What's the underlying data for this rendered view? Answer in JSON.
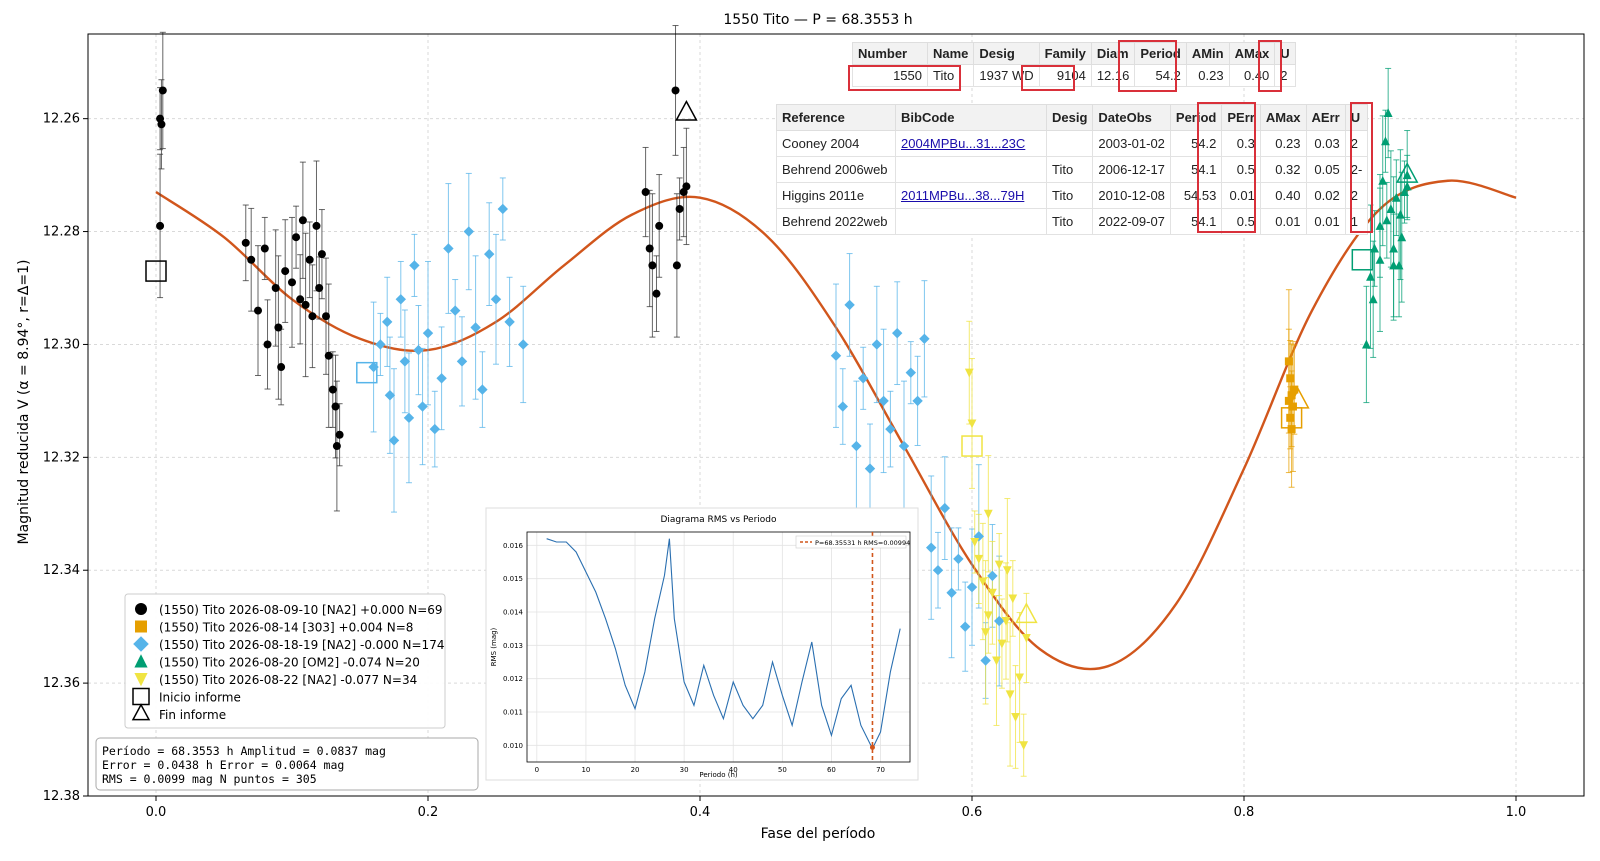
{
  "chart_data": [
    {
      "type": "scatter",
      "title": "1550 Tito — P = 68.3553 h",
      "xlabel": "Fase del período",
      "ylabel": "Magnitud reducida V  (α = 8.94°, r=Δ=1)",
      "xlim": [
        -0.05,
        1.05
      ],
      "ylim": [
        12.38,
        12.245
      ],
      "y_inverted": true,
      "xticks": [
        "0.0",
        "0.2",
        "0.4",
        "0.6",
        "0.8",
        "1.0"
      ],
      "yticks": [
        "12.26",
        "12.28",
        "12.30",
        "12.32",
        "12.34",
        "12.36",
        "12.38"
      ],
      "grid": true,
      "legend_position": "lower-left",
      "fit_curve": {
        "name": "Fourier fit",
        "color": "#d1561c",
        "x": [
          0.0,
          0.05,
          0.1,
          0.15,
          0.2,
          0.25,
          0.3,
          0.35,
          0.4,
          0.45,
          0.5,
          0.55,
          0.6,
          0.65,
          0.7,
          0.75,
          0.8,
          0.85,
          0.9,
          0.95,
          1.0
        ],
        "y": [
          12.273,
          12.281,
          12.292,
          12.299,
          12.301,
          12.296,
          12.286,
          12.277,
          12.274,
          12.281,
          12.297,
          12.318,
          12.339,
          12.354,
          12.357,
          12.346,
          12.322,
          12.294,
          12.276,
          12.271,
          12.274
        ]
      },
      "series": [
        {
          "name": "(1550) Tito 2026-08-09-10 [NA2] +0.000 N=69",
          "color": "#000000",
          "marker": "circle",
          "points": [
            [
              0.003,
              12.26
            ],
            [
              0.004,
              12.261
            ],
            [
              0.005,
              12.255
            ],
            [
              0.003,
              12.279
            ],
            [
              0.066,
              12.282
            ],
            [
              0.07,
              12.285
            ],
            [
              0.075,
              12.294
            ],
            [
              0.08,
              12.283
            ],
            [
              0.082,
              12.3
            ],
            [
              0.088,
              12.29
            ],
            [
              0.09,
              12.297
            ],
            [
              0.092,
              12.304
            ],
            [
              0.095,
              12.287
            ],
            [
              0.1,
              12.289
            ],
            [
              0.103,
              12.281
            ],
            [
              0.106,
              12.292
            ],
            [
              0.108,
              12.278
            ],
            [
              0.11,
              12.293
            ],
            [
              0.113,
              12.285
            ],
            [
              0.115,
              12.295
            ],
            [
              0.118,
              12.279
            ],
            [
              0.12,
              12.29
            ],
            [
              0.122,
              12.284
            ],
            [
              0.125,
              12.295
            ],
            [
              0.127,
              12.302
            ],
            [
              0.13,
              12.308
            ],
            [
              0.132,
              12.311
            ],
            [
              0.133,
              12.318
            ],
            [
              0.135,
              12.316
            ],
            [
              0.36,
              12.273
            ],
            [
              0.363,
              12.283
            ],
            [
              0.365,
              12.286
            ],
            [
              0.368,
              12.291
            ],
            [
              0.37,
              12.279
            ],
            [
              0.382,
              12.255
            ],
            [
              0.385,
              12.276
            ],
            [
              0.388,
              12.273
            ],
            [
              0.39,
              12.272
            ],
            [
              0.383,
              12.286
            ]
          ]
        },
        {
          "name": "(1550) Tito 2026-08-14 [303] +0.004 N=8",
          "color": "#e69f00",
          "marker": "square",
          "points": [
            [
              0.833,
              12.303
            ],
            [
              0.834,
              12.306
            ],
            [
              0.835,
              12.309
            ],
            [
              0.836,
              12.311
            ],
            [
              0.834,
              12.313
            ],
            [
              0.837,
              12.308
            ],
            [
              0.835,
              12.315
            ],
            [
              0.833,
              12.31
            ]
          ]
        },
        {
          "name": "(1550) Tito 2026-08-18-19 [NA2] -0.000 N=174",
          "color": "#56b4e9",
          "marker": "diamond",
          "points": [
            [
              0.16,
              12.304
            ],
            [
              0.165,
              12.3
            ],
            [
              0.17,
              12.296
            ],
            [
              0.172,
              12.309
            ],
            [
              0.175,
              12.317
            ],
            [
              0.18,
              12.292
            ],
            [
              0.183,
              12.303
            ],
            [
              0.186,
              12.313
            ],
            [
              0.19,
              12.286
            ],
            [
              0.193,
              12.301
            ],
            [
              0.196,
              12.311
            ],
            [
              0.2,
              12.298
            ],
            [
              0.205,
              12.315
            ],
            [
              0.21,
              12.306
            ],
            [
              0.215,
              12.283
            ],
            [
              0.22,
              12.294
            ],
            [
              0.225,
              12.303
            ],
            [
              0.23,
              12.28
            ],
            [
              0.235,
              12.297
            ],
            [
              0.24,
              12.308
            ],
            [
              0.245,
              12.284
            ],
            [
              0.25,
              12.292
            ],
            [
              0.255,
              12.276
            ],
            [
              0.26,
              12.296
            ],
            [
              0.27,
              12.3
            ],
            [
              0.5,
              12.302
            ],
            [
              0.505,
              12.311
            ],
            [
              0.51,
              12.293
            ],
            [
              0.515,
              12.318
            ],
            [
              0.52,
              12.306
            ],
            [
              0.525,
              12.322
            ],
            [
              0.53,
              12.3
            ],
            [
              0.535,
              12.31
            ],
            [
              0.54,
              12.315
            ],
            [
              0.545,
              12.298
            ],
            [
              0.55,
              12.318
            ],
            [
              0.555,
              12.305
            ],
            [
              0.56,
              12.31
            ],
            [
              0.565,
              12.299
            ],
            [
              0.57,
              12.336
            ],
            [
              0.575,
              12.34
            ],
            [
              0.58,
              12.329
            ],
            [
              0.585,
              12.344
            ],
            [
              0.59,
              12.338
            ],
            [
              0.595,
              12.35
            ],
            [
              0.6,
              12.343
            ],
            [
              0.605,
              12.334
            ],
            [
              0.61,
              12.356
            ],
            [
              0.615,
              12.341
            ],
            [
              0.62,
              12.349
            ]
          ]
        },
        {
          "name": "(1550) Tito 2026-08-20 [OM2] -0.074 N=20",
          "color": "#009e73",
          "marker": "triangle-up",
          "points": [
            [
              0.89,
              12.3
            ],
            [
              0.893,
              12.288
            ],
            [
              0.896,
              12.283
            ],
            [
              0.9,
              12.279
            ],
            [
              0.902,
              12.271
            ],
            [
              0.904,
              12.264
            ],
            [
              0.906,
              12.259
            ],
            [
              0.908,
              12.276
            ],
            [
              0.91,
              12.283
            ],
            [
              0.912,
              12.274
            ],
            [
              0.914,
              12.286
            ],
            [
              0.916,
              12.281
            ],
            [
              0.918,
              12.273
            ],
            [
              0.92,
              12.27
            ],
            [
              0.895,
              12.292
            ],
            [
              0.9,
              12.285
            ],
            [
              0.905,
              12.278
            ],
            [
              0.91,
              12.286
            ],
            [
              0.915,
              12.277
            ],
            [
              0.92,
              12.272
            ]
          ]
        },
        {
          "name": "(1550) Tito 2026-08-22 [NA2] -0.077 N=34",
          "color": "#f0e442",
          "marker": "triangle-down",
          "points": [
            [
              0.598,
              12.305
            ],
            [
              0.6,
              12.314
            ],
            [
              0.602,
              12.335
            ],
            [
              0.605,
              12.338
            ],
            [
              0.608,
              12.342
            ],
            [
              0.61,
              12.351
            ],
            [
              0.612,
              12.348
            ],
            [
              0.615,
              12.344
            ],
            [
              0.618,
              12.356
            ],
            [
              0.62,
              12.339
            ],
            [
              0.622,
              12.353
            ],
            [
              0.625,
              12.349
            ],
            [
              0.628,
              12.362
            ],
            [
              0.63,
              12.345
            ],
            [
              0.632,
              12.366
            ],
            [
              0.635,
              12.359
            ],
            [
              0.638,
              12.371
            ],
            [
              0.64,
              12.352
            ],
            [
              0.612,
              12.33
            ],
            [
              0.626,
              12.34
            ]
          ]
        },
        {
          "name": "Inicio informe",
          "color": "#000000",
          "marker": "open-square",
          "points": [
            [
              0.0,
              12.287
            ],
            [
              0.155,
              12.305
            ],
            [
              0.6,
              12.318
            ],
            [
              0.835,
              12.313
            ],
            [
              0.887,
              12.285
            ]
          ]
        },
        {
          "name": "Fin informe",
          "color": "#000000",
          "marker": "open-triangle",
          "points": [
            [
              0.39,
              12.259
            ],
            [
              0.84,
              12.31
            ],
            [
              0.92,
              12.27
            ],
            [
              0.64,
              12.348
            ]
          ]
        }
      ]
    },
    {
      "type": "line",
      "title": "Diagrama RMS vs Periodo",
      "xlabel": "Periodo (h)",
      "ylabel": "RMS (mag)",
      "xlim": [
        -2,
        76
      ],
      "ylim": [
        0.0095,
        0.0164
      ],
      "xticks": [
        "0",
        "10",
        "20",
        "30",
        "40",
        "50",
        "60",
        "70"
      ],
      "yticks": [
        "0.010",
        "0.011",
        "0.012",
        "0.013",
        "0.014",
        "0.015",
        "0.016"
      ],
      "grid": true,
      "legend_position": "top-right",
      "legend": [
        "P=68.35531 h   RMS=0.00994"
      ],
      "marker_line": {
        "x": 68.35531,
        "color": "#d1561c"
      },
      "series": [
        {
          "name": "RMS",
          "color": "#2a6fb0",
          "x": [
            2,
            4,
            6,
            8,
            10,
            12,
            14,
            16,
            18,
            20,
            22,
            24,
            26,
            27,
            28,
            30,
            32,
            34,
            36,
            38,
            40,
            42,
            44,
            46,
            48,
            50,
            52,
            54,
            56,
            58,
            60,
            62,
            64,
            66,
            68.35,
            70,
            72,
            74
          ],
          "y": [
            0.0162,
            0.0161,
            0.0161,
            0.0158,
            0.0152,
            0.0146,
            0.0138,
            0.0129,
            0.0118,
            0.0111,
            0.0122,
            0.0138,
            0.0151,
            0.0162,
            0.0138,
            0.0119,
            0.0112,
            0.0124,
            0.0115,
            0.0108,
            0.0119,
            0.0112,
            0.0108,
            0.0112,
            0.0125,
            0.0115,
            0.0106,
            0.0119,
            0.0131,
            0.0112,
            0.0103,
            0.0114,
            0.0118,
            0.0106,
            0.0099,
            0.0104,
            0.0122,
            0.0135
          ]
        }
      ]
    }
  ],
  "stats_box": [
    "Período  = 68.3553 h       Amplitud = 0.0837 mag",
    "Error      = 0.0438 h        Error       = 0.0064 mag",
    "RMS        = 0.0099 mag    N puntos = 305"
  ],
  "table_main": {
    "headers": [
      "Number",
      "Name",
      "Desig",
      "Family",
      "Diam",
      "Period",
      "AMin",
      "AMax",
      "U"
    ],
    "row": [
      "1550",
      "Tito",
      "1937 WD",
      "9104",
      "12.16",
      "54.2",
      "0.23",
      "0.40",
      "2"
    ]
  },
  "table_refs": {
    "headers": [
      "Reference",
      "BibCode",
      "Desig",
      "DateObs",
      "Period",
      "PErr",
      "AMax",
      "AErr",
      "U"
    ],
    "rows": [
      [
        "Cooney 2004",
        "2004MPBu...31...23C",
        "",
        "2003-01-02",
        "54.2",
        "0.3",
        "0.23",
        "0.03",
        "2"
      ],
      [
        "Behrend 2006web",
        "",
        "Tito",
        "2006-12-17",
        "54.1",
        "0.5",
        "0.32",
        "0.05",
        "2-"
      ],
      [
        "Higgins 2011e",
        "2011MPBu...38...79H",
        "Tito",
        "2010-12-08",
        "54.53",
        "0.01",
        "0.40",
        "0.02",
        "2"
      ],
      [
        "Behrend 2022web",
        "",
        "Tito",
        "2022-09-07",
        "54.1",
        "0.5",
        "0.01",
        "0.01",
        "1"
      ]
    ]
  },
  "colors": {
    "fit": "#d1561c",
    "highlight": "#d9303a",
    "grid": "#d9d9d9"
  }
}
